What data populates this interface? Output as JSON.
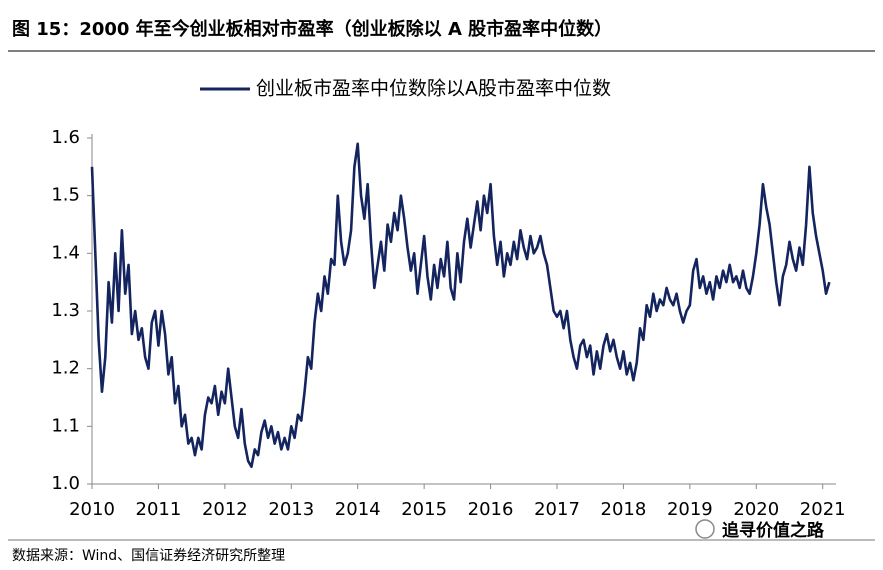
{
  "chart_data": {
    "type": "line",
    "title": "图 15：2000 年至今创业板相对市盈率（创业板除以 A 股市盈率中位数）",
    "source": "数据来源：Wind、国信证券经济研究所整理",
    "watermark": "追寻价值之路",
    "xlim": [
      2010,
      2021.2
    ],
    "xticks": [
      2010,
      2011,
      2012,
      2013,
      2014,
      2015,
      2016,
      2017,
      2018,
      2019,
      2020,
      2021
    ],
    "ylim": [
      1,
      1.6
    ],
    "yticks": [
      {
        "value": 1,
        "label": "1.0"
      },
      1.1,
      1.2,
      1.3,
      1.4,
      1.5,
      1.6
    ],
    "legend": "top",
    "x": [
      2010,
      2010.05,
      2010.1,
      2010.15,
      2010.2,
      2010.25,
      2010.3,
      2010.35,
      2010.4,
      2010.45,
      2010.5,
      2010.55,
      2010.6,
      2010.65,
      2010.7,
      2010.75,
      2010.8,
      2010.85,
      2010.9,
      2010.95,
      2011,
      2011.05,
      2011.1,
      2011.15,
      2011.2,
      2011.25,
      2011.3,
      2011.35,
      2011.4,
      2011.45,
      2011.5,
      2011.55,
      2011.6,
      2011.65,
      2011.7,
      2011.75,
      2011.8,
      2011.85,
      2011.9,
      2011.95,
      2012,
      2012.05,
      2012.1,
      2012.15,
      2012.2,
      2012.25,
      2012.3,
      2012.35,
      2012.4,
      2012.45,
      2012.5,
      2012.55,
      2012.6,
      2012.65,
      2012.7,
      2012.75,
      2012.8,
      2012.85,
      2012.9,
      2012.95,
      2013,
      2013.05,
      2013.1,
      2013.15,
      2013.2,
      2013.25,
      2013.3,
      2013.35,
      2013.4,
      2013.45,
      2013.5,
      2013.55,
      2013.6,
      2013.65,
      2013.7,
      2013.75,
      2013.8,
      2013.85,
      2013.9,
      2013.95,
      2014,
      2014.05,
      2014.1,
      2014.15,
      2014.2,
      2014.25,
      2014.3,
      2014.35,
      2014.4,
      2014.45,
      2014.5,
      2014.55,
      2014.6,
      2014.65,
      2014.7,
      2014.75,
      2014.8,
      2014.85,
      2014.9,
      2014.95,
      2015,
      2015.05,
      2015.1,
      2015.15,
      2015.2,
      2015.25,
      2015.3,
      2015.35,
      2015.4,
      2015.45,
      2015.5,
      2015.55,
      2015.6,
      2015.65,
      2015.7,
      2015.75,
      2015.8,
      2015.85,
      2015.9,
      2015.95,
      2016,
      2016.05,
      2016.1,
      2016.15,
      2016.2,
      2016.25,
      2016.3,
      2016.35,
      2016.4,
      2016.45,
      2016.5,
      2016.55,
      2016.6,
      2016.65,
      2016.7,
      2016.75,
      2016.8,
      2016.85,
      2016.9,
      2016.95,
      2017,
      2017.05,
      2017.1,
      2017.15,
      2017.2,
      2017.25,
      2017.3,
      2017.35,
      2017.4,
      2017.45,
      2017.5,
      2017.55,
      2017.6,
      2017.65,
      2017.7,
      2017.75,
      2017.8,
      2017.85,
      2017.9,
      2017.95,
      2018,
      2018.05,
      2018.1,
      2018.15,
      2018.2,
      2018.25,
      2018.3,
      2018.35,
      2018.4,
      2018.45,
      2018.5,
      2018.55,
      2018.6,
      2018.65,
      2018.7,
      2018.75,
      2018.8,
      2018.85,
      2018.9,
      2018.95,
      2019,
      2019.05,
      2019.1,
      2019.15,
      2019.2,
      2019.25,
      2019.3,
      2019.35,
      2019.4,
      2019.45,
      2019.5,
      2019.55,
      2019.6,
      2019.65,
      2019.7,
      2019.75,
      2019.8,
      2019.85,
      2019.9,
      2019.95,
      2020,
      2020.05,
      2020.1,
      2020.15,
      2020.2,
      2020.25,
      2020.3,
      2020.35,
      2020.4,
      2020.45,
      2020.5,
      2020.55,
      2020.6,
      2020.65,
      2020.7,
      2020.75,
      2020.8,
      2020.85,
      2020.9,
      2020.95,
      2021,
      2021.05,
      2021.1
    ],
    "series": [
      {
        "name": "创业板市盈率中位数除以A股市盈率中位数",
        "color": "#14245e",
        "values": [
          1.55,
          1.4,
          1.25,
          1.16,
          1.22,
          1.35,
          1.28,
          1.4,
          1.3,
          1.44,
          1.33,
          1.38,
          1.26,
          1.3,
          1.25,
          1.27,
          1.22,
          1.2,
          1.28,
          1.3,
          1.24,
          1.3,
          1.26,
          1.19,
          1.22,
          1.14,
          1.17,
          1.1,
          1.12,
          1.07,
          1.08,
          1.05,
          1.08,
          1.06,
          1.12,
          1.15,
          1.14,
          1.17,
          1.12,
          1.16,
          1.14,
          1.2,
          1.15,
          1.1,
          1.08,
          1.13,
          1.07,
          1.04,
          1.03,
          1.06,
          1.05,
          1.09,
          1.11,
          1.08,
          1.1,
          1.07,
          1.09,
          1.06,
          1.08,
          1.06,
          1.1,
          1.08,
          1.12,
          1.11,
          1.16,
          1.22,
          1.2,
          1.28,
          1.33,
          1.3,
          1.36,
          1.33,
          1.39,
          1.38,
          1.5,
          1.42,
          1.38,
          1.4,
          1.44,
          1.55,
          1.59,
          1.5,
          1.46,
          1.52,
          1.42,
          1.34,
          1.38,
          1.42,
          1.37,
          1.45,
          1.42,
          1.47,
          1.44,
          1.5,
          1.46,
          1.41,
          1.37,
          1.4,
          1.33,
          1.38,
          1.43,
          1.36,
          1.32,
          1.38,
          1.34,
          1.39,
          1.36,
          1.42,
          1.34,
          1.32,
          1.4,
          1.35,
          1.42,
          1.46,
          1.41,
          1.45,
          1.49,
          1.44,
          1.5,
          1.47,
          1.52,
          1.43,
          1.38,
          1.42,
          1.36,
          1.4,
          1.38,
          1.42,
          1.39,
          1.44,
          1.41,
          1.39,
          1.43,
          1.4,
          1.41,
          1.43,
          1.4,
          1.38,
          1.34,
          1.3,
          1.29,
          1.3,
          1.27,
          1.3,
          1.25,
          1.22,
          1.2,
          1.24,
          1.25,
          1.22,
          1.24,
          1.19,
          1.23,
          1.2,
          1.24,
          1.26,
          1.23,
          1.25,
          1.22,
          1.2,
          1.23,
          1.19,
          1.21,
          1.18,
          1.21,
          1.27,
          1.25,
          1.31,
          1.29,
          1.33,
          1.3,
          1.32,
          1.31,
          1.34,
          1.32,
          1.31,
          1.33,
          1.3,
          1.28,
          1.3,
          1.31,
          1.37,
          1.39,
          1.34,
          1.36,
          1.33,
          1.35,
          1.32,
          1.36,
          1.34,
          1.37,
          1.35,
          1.38,
          1.35,
          1.36,
          1.34,
          1.37,
          1.34,
          1.33,
          1.36,
          1.4,
          1.45,
          1.52,
          1.48,
          1.45,
          1.4,
          1.35,
          1.31,
          1.36,
          1.38,
          1.42,
          1.39,
          1.37,
          1.41,
          1.38,
          1.45,
          1.55,
          1.47,
          1.43,
          1.4,
          1.37,
          1.33,
          1.35
        ]
      }
    ]
  }
}
